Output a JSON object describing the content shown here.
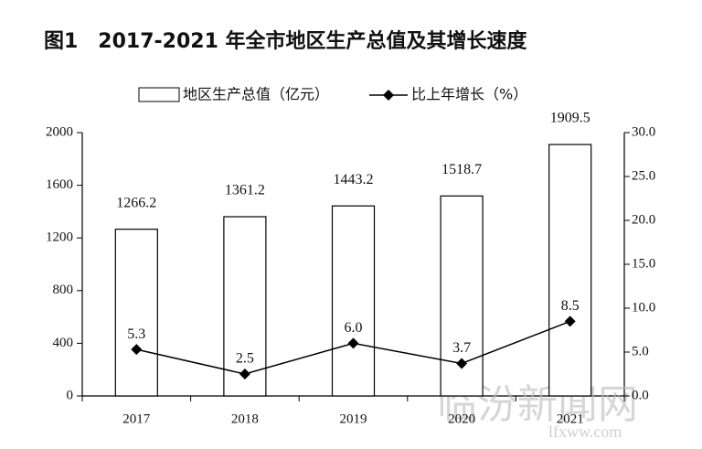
{
  "chart_data": {
    "type": "bar-line",
    "title": "图1　2017-2021 年全市地区生产总值及其增长速度",
    "categories": [
      "2017",
      "2018",
      "2019",
      "2020",
      "2021"
    ],
    "series": [
      {
        "name": "地区生产总值（亿元）",
        "type": "bar",
        "color": "#ffffff",
        "values": [
          1266.2,
          1361.2,
          1443.2,
          1518.7,
          1909.5
        ]
      },
      {
        "name": "比上年增长（%）",
        "type": "line",
        "axis": "y2",
        "color": "#000000",
        "values": [
          5.3,
          2.5,
          6.0,
          3.7,
          8.5
        ],
        "value_labels": [
          "5.3",
          "2.5",
          "6.0",
          "3.7",
          "8.5"
        ]
      }
    ],
    "ylim": [
      0,
      2000
    ],
    "yticks": [
      0,
      400,
      800,
      1200,
      1600,
      2000
    ],
    "y2lim": [
      0,
      30
    ],
    "y2ticks": [
      {
        "value": 0,
        "label": "0.0"
      },
      {
        "value": 5,
        "label": "5.0"
      },
      {
        "value": 10,
        "label": "10.0"
      },
      {
        "value": 15,
        "label": "15.0"
      },
      {
        "value": 20,
        "label": "20.0"
      },
      {
        "value": 25,
        "label": "25.0"
      },
      {
        "value": 30,
        "label": "30.0"
      }
    ],
    "grid": false,
    "legend": "top",
    "watermark": [
      "临汾新闻网",
      "lfxww.com"
    ]
  }
}
